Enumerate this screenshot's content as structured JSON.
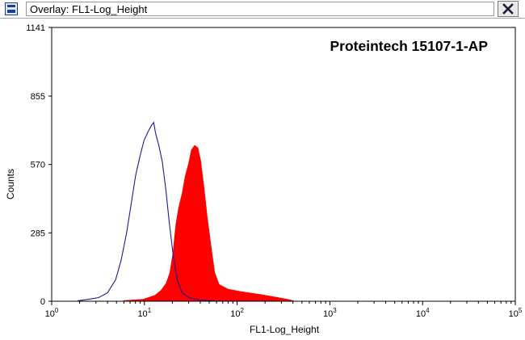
{
  "window": {
    "title": "Overlay: FL1-Log_Height",
    "icons": {
      "app": "overlay-window-icon",
      "close": "close-x-icon"
    }
  },
  "chart_data": {
    "type": "area",
    "annotation": "Proteintech 15107-1-AP",
    "xlabel": "FL1-Log_Height",
    "ylabel": "Counts",
    "x_scale": "log",
    "xlim": [
      1,
      100000
    ],
    "ylim": [
      0,
      1141
    ],
    "x_tick_labels": [
      {
        "base": "10",
        "exp": "0",
        "value": 1
      },
      {
        "base": "10",
        "exp": "1",
        "value": 10
      },
      {
        "base": "10",
        "exp": "2",
        "value": 100
      },
      {
        "base": "10",
        "exp": "3",
        "value": 1000
      },
      {
        "base": "10",
        "exp": "4",
        "value": 10000
      },
      {
        "base": "10",
        "exp": "5",
        "value": 100000
      }
    ],
    "y_ticks": [
      0,
      285,
      570,
      855,
      1141
    ],
    "grid": false,
    "series": [
      {
        "style": "outline",
        "color": "#1a1a9c",
        "x": [
          1.9,
          2.5,
          3.2,
          4.0,
          4.9,
          5.6,
          6.4,
          7.3,
          8.0,
          8.9,
          9.9,
          10.9,
          12.0,
          12.6,
          13.2,
          14.3,
          15.6,
          17.1,
          18.5,
          20.3,
          22.6,
          25.5,
          30.2,
          40,
          55,
          65
        ],
        "y": [
          2,
          8,
          15,
          35,
          90,
          170,
          280,
          420,
          520,
          600,
          670,
          705,
          735,
          745,
          700,
          650,
          580,
          460,
          330,
          200,
          90,
          35,
          15,
          5,
          2,
          0
        ]
      },
      {
        "style": "filled",
        "color": "#ff0000",
        "x": [
          6.0,
          9.6,
          13.0,
          15.1,
          17.2,
          18.8,
          20.3,
          21.8,
          23.4,
          25.5,
          27.5,
          29.8,
          32.1,
          34.8,
          37.7,
          40.5,
          43.8,
          47.6,
          52.7,
          57.3,
          63.9,
          80,
          110,
          180,
          280,
          330,
          380,
          420
        ],
        "y": [
          3,
          8,
          25,
          45,
          75,
          120,
          200,
          320,
          390,
          450,
          520,
          570,
          630,
          650,
          640,
          585,
          480,
          350,
          220,
          120,
          70,
          50,
          40,
          28,
          15,
          10,
          5,
          0
        ]
      }
    ]
  }
}
